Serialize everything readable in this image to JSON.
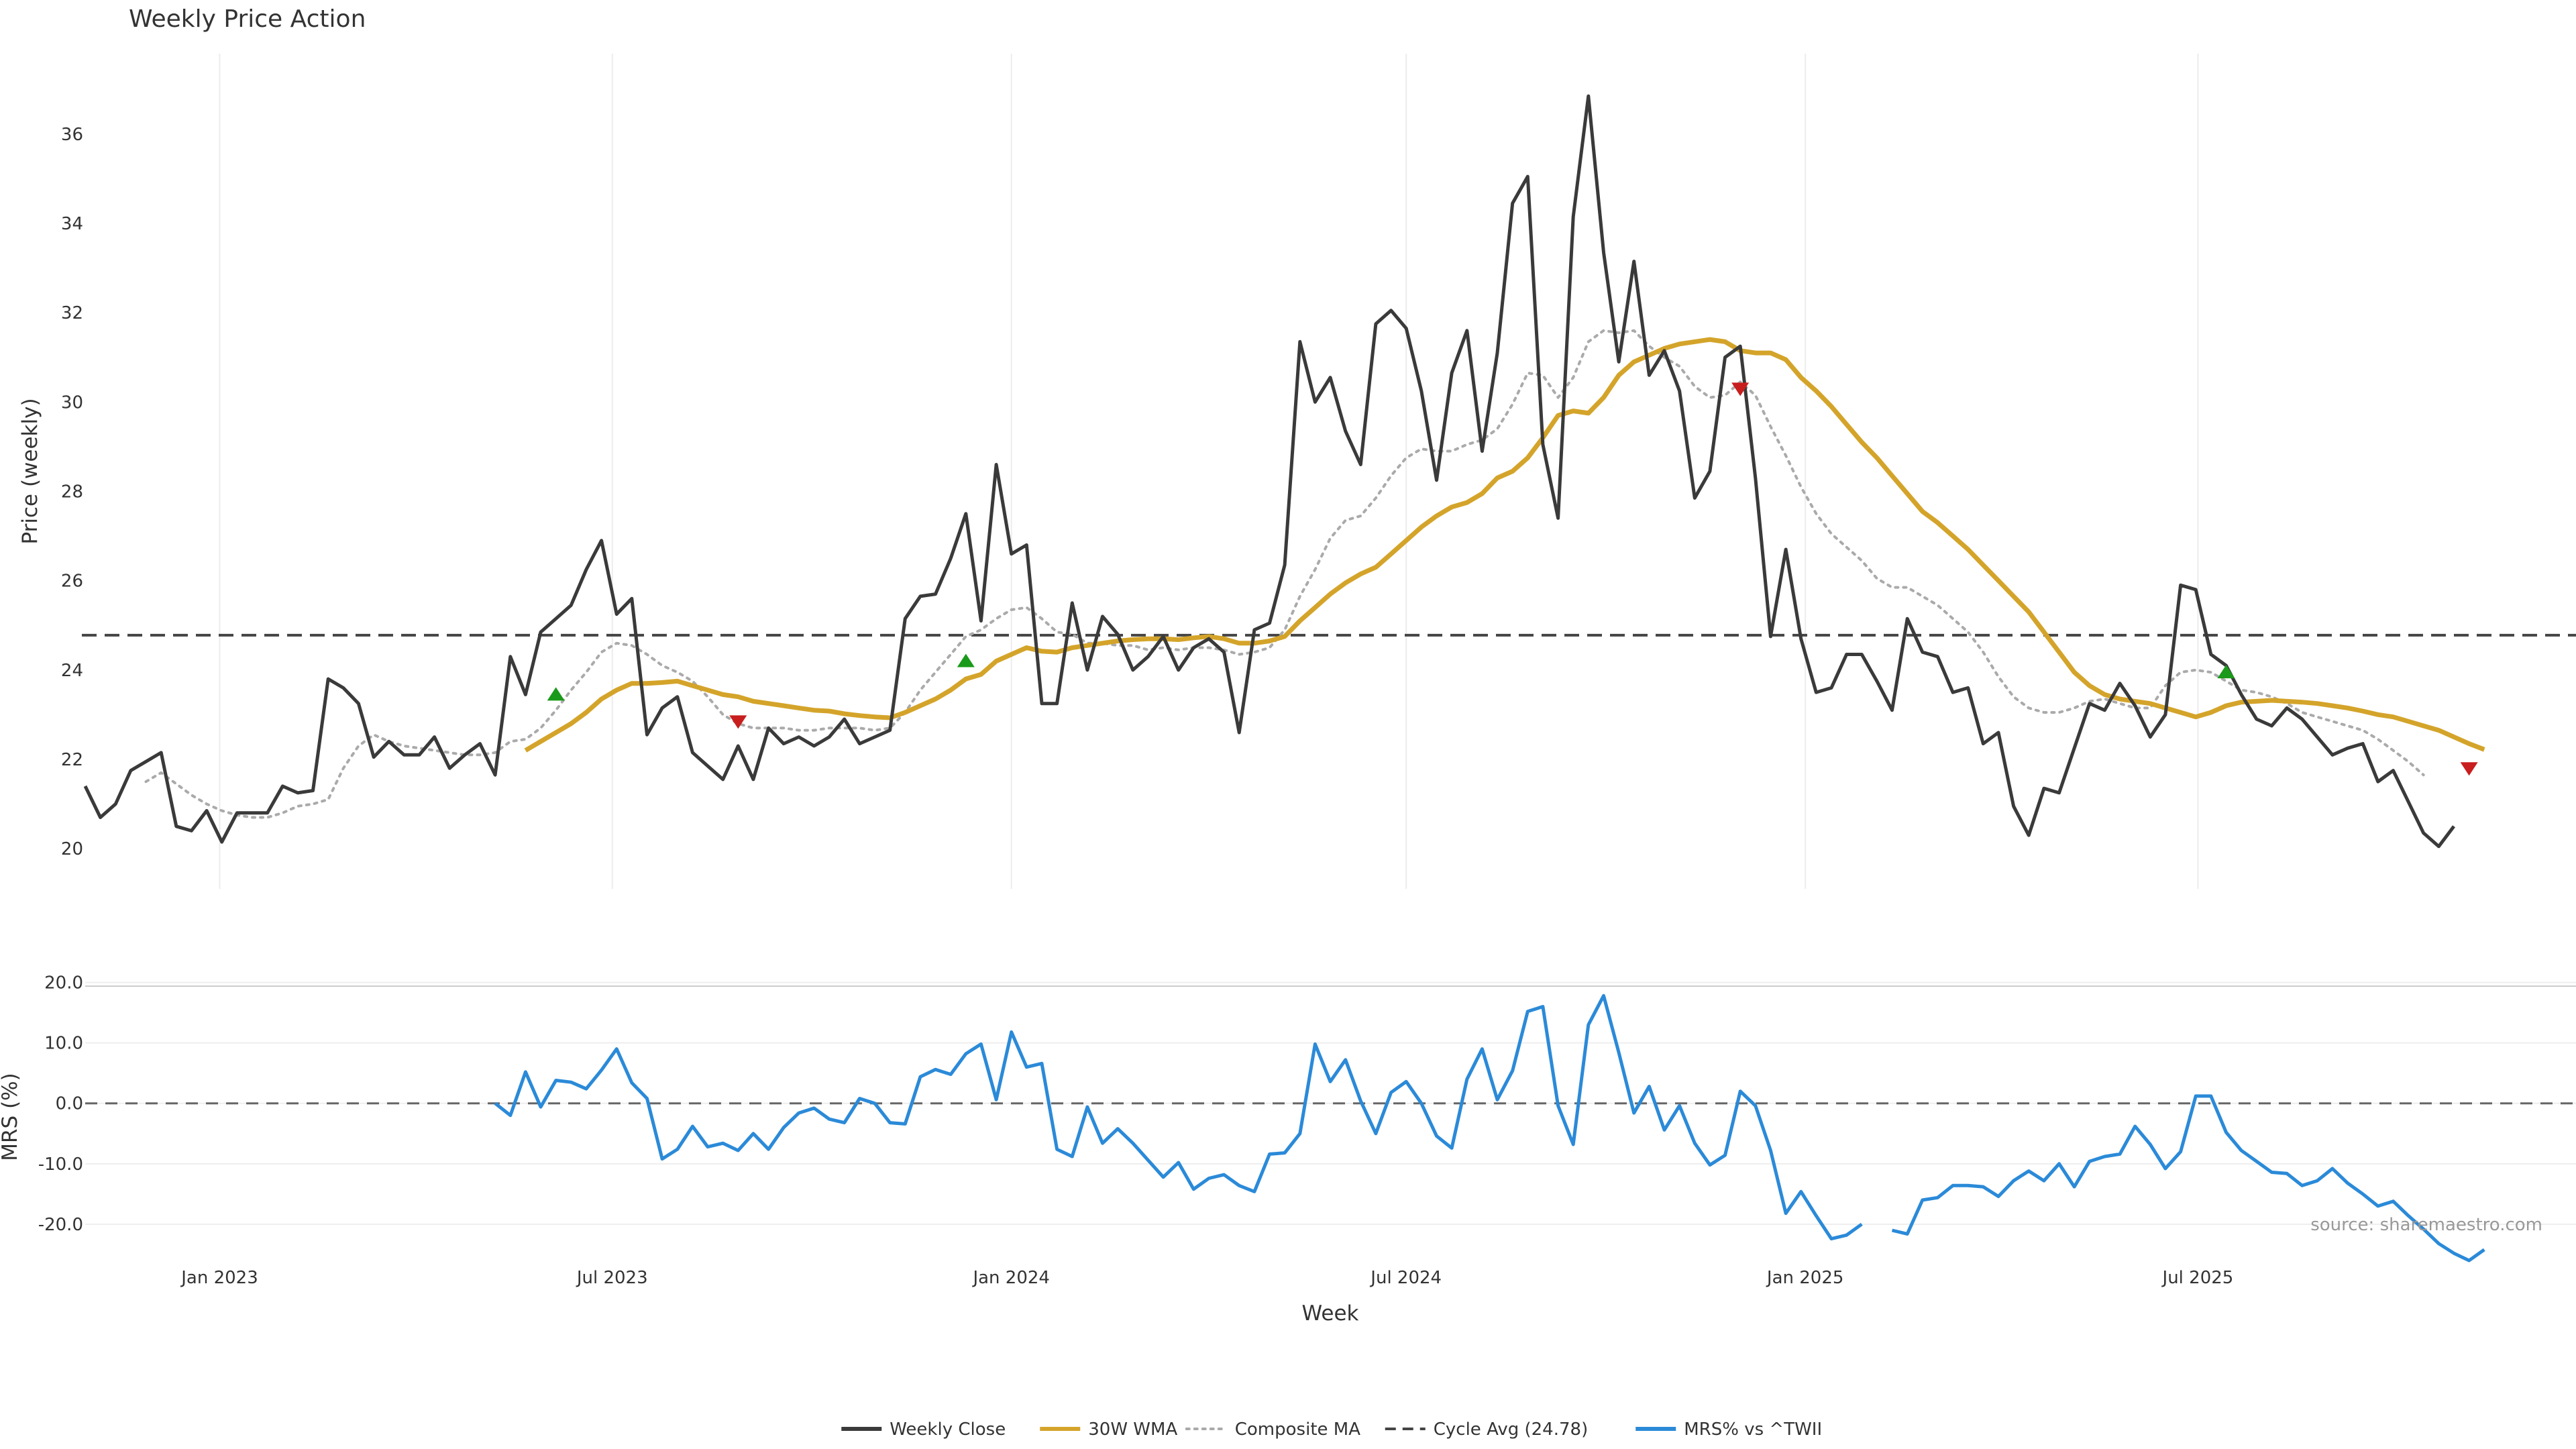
{
  "chart_data": {
    "type": "line",
    "title": "Weekly Price Action",
    "xlabel": "Week",
    "source": "source: sharemaestro.com",
    "x_start": "2022-10-31",
    "x_step_days": 7,
    "x_ticks": [
      {
        "date": "2023-01-01",
        "label": "Jan 2023"
      },
      {
        "date": "2023-07-01",
        "label": "Jul 2023"
      },
      {
        "date": "2024-01-01",
        "label": "Jan 2024"
      },
      {
        "date": "2024-07-01",
        "label": "Jul 2024"
      },
      {
        "date": "2025-01-01",
        "label": "Jan 2025"
      },
      {
        "date": "2025-07-01",
        "label": "Jul 2025"
      }
    ],
    "price_panel": {
      "ylabel": "Price (weekly)",
      "ylim": [
        19.1,
        37.8
      ],
      "yticks": [
        "20",
        "22",
        "24",
        "26",
        "28",
        "30",
        "32",
        "34",
        "36"
      ],
      "cycle_avg": 24.78
    },
    "mrs_panel": {
      "ylabel": "MRS (%)",
      "ylim": [
        -25,
        20.5
      ],
      "yticks": [
        "20.0",
        "10.0",
        "0.0",
        "-10.0",
        "-20.0"
      ],
      "zero_line": 0
    },
    "series": [
      {
        "name": "Weekly Close",
        "color": "#3a3a3a",
        "style": "solid",
        "values": [
          21.4,
          20.7,
          21.0,
          21.75,
          21.95,
          22.15,
          20.5,
          20.4,
          20.85,
          20.15,
          20.8,
          20.8,
          20.8,
          21.4,
          21.25,
          21.3,
          23.8,
          23.6,
          23.25,
          22.05,
          22.4,
          22.1,
          22.1,
          22.5,
          21.8,
          22.1,
          22.35,
          21.65,
          24.3,
          23.45,
          24.85,
          25.15,
          25.45,
          26.25,
          26.9,
          25.25,
          25.6,
          22.55,
          23.15,
          23.4,
          22.15,
          21.85,
          21.55,
          22.3,
          21.55,
          22.7,
          22.35,
          22.5,
          22.3,
          22.5,
          22.9,
          22.35,
          22.5,
          22.65,
          25.15,
          25.65,
          25.7,
          26.5,
          27.5,
          25.1,
          28.6,
          26.6,
          26.8,
          23.25,
          23.25,
          25.5,
          24.0,
          25.2,
          24.8,
          24.0,
          24.3,
          24.75,
          24.0,
          24.5,
          24.7,
          24.4,
          22.6,
          24.9,
          25.05,
          26.35,
          31.35,
          30.0,
          30.55,
          29.35,
          28.6,
          31.75,
          32.05,
          31.65,
          30.25,
          28.25,
          30.65,
          31.6,
          28.9,
          31.1,
          34.45,
          35.05,
          29.05,
          27.4,
          34.15,
          36.85,
          33.35,
          30.9,
          33.15,
          30.6,
          31.15,
          30.25,
          27.85,
          28.45,
          31.0,
          31.25,
          28.3,
          24.75,
          26.7,
          24.7,
          23.5,
          23.6,
          24.35,
          24.35,
          23.75,
          23.1,
          25.15,
          24.4,
          24.3,
          23.5,
          23.6,
          22.35,
          22.6,
          20.95,
          20.3,
          21.35,
          21.25,
          22.25,
          23.25,
          23.1,
          23.7,
          23.2,
          22.5,
          23.0,
          25.9,
          25.8,
          24.35,
          24.1,
          23.45,
          22.9,
          22.75,
          23.15,
          22.9,
          22.5,
          22.1,
          22.25,
          22.35,
          21.5,
          21.75,
          21.05,
          20.35,
          20.05,
          20.5
        ]
      },
      {
        "name": "30W WMA",
        "color": "#d4a42a",
        "style": "solid",
        "values": [
          null,
          null,
          null,
          null,
          null,
          null,
          null,
          null,
          null,
          null,
          null,
          null,
          null,
          null,
          null,
          null,
          null,
          null,
          null,
          null,
          null,
          null,
          null,
          null,
          null,
          null,
          null,
          null,
          null,
          22.2,
          22.4,
          22.6,
          22.8,
          23.05,
          23.35,
          23.55,
          23.7,
          23.7,
          23.72,
          23.75,
          23.65,
          23.55,
          23.45,
          23.4,
          23.3,
          23.25,
          23.2,
          23.15,
          23.1,
          23.08,
          23.02,
          22.98,
          22.95,
          22.93,
          23.05,
          23.2,
          23.35,
          23.55,
          23.8,
          23.9,
          24.2,
          24.35,
          24.5,
          24.42,
          24.4,
          24.5,
          24.55,
          24.6,
          24.65,
          24.68,
          24.7,
          24.7,
          24.68,
          24.72,
          24.75,
          24.7,
          24.6,
          24.6,
          24.65,
          24.75,
          25.1,
          25.4,
          25.7,
          25.95,
          26.15,
          26.3,
          26.6,
          26.9,
          27.2,
          27.45,
          27.65,
          27.75,
          27.95,
          28.3,
          28.45,
          28.75,
          29.2,
          29.7,
          29.8,
          29.75,
          30.1,
          30.6,
          30.9,
          31.05,
          31.2,
          31.3,
          31.35,
          31.4,
          31.35,
          31.15,
          31.1,
          31.1,
          30.95,
          30.55,
          30.25,
          29.9,
          29.5,
          29.1,
          28.75,
          28.35,
          27.95,
          27.55,
          27.3,
          27.0,
          26.7,
          26.35,
          26.0,
          25.65,
          25.3,
          24.85,
          24.4,
          23.95,
          23.65,
          23.45,
          23.35,
          23.3,
          23.25,
          23.15,
          23.05,
          22.95,
          23.05,
          23.2,
          23.28,
          23.3,
          23.32,
          23.3,
          23.28,
          23.25,
          23.2,
          23.15,
          23.08,
          23.0,
          22.95,
          22.85,
          22.75,
          22.65,
          22.5,
          22.35,
          22.22
        ]
      },
      {
        "name": "Composite MA",
        "color": "#aaaaaa",
        "style": "dotted",
        "values": [
          null,
          null,
          null,
          null,
          21.5,
          21.7,
          21.45,
          21.2,
          21.0,
          20.85,
          20.75,
          20.7,
          20.7,
          20.8,
          20.95,
          21.0,
          21.1,
          21.8,
          22.3,
          22.55,
          22.4,
          22.3,
          22.25,
          22.2,
          22.15,
          22.1,
          22.1,
          22.15,
          22.4,
          22.45,
          22.7,
          23.1,
          23.55,
          23.95,
          24.4,
          24.6,
          24.55,
          24.35,
          24.1,
          23.95,
          23.75,
          23.4,
          23.0,
          22.8,
          22.7,
          22.7,
          22.7,
          22.65,
          22.65,
          22.7,
          22.7,
          22.7,
          22.65,
          22.7,
          23.05,
          23.55,
          23.95,
          24.35,
          24.75,
          24.9,
          25.15,
          25.35,
          25.4,
          25.15,
          24.85,
          24.8,
          24.6,
          24.6,
          24.55,
          24.55,
          24.45,
          24.5,
          24.45,
          24.5,
          24.5,
          24.45,
          24.35,
          24.4,
          24.5,
          24.9,
          25.65,
          26.25,
          26.95,
          27.35,
          27.45,
          27.85,
          28.35,
          28.75,
          28.95,
          28.9,
          28.9,
          29.05,
          29.15,
          29.4,
          29.95,
          30.65,
          30.6,
          30.1,
          30.55,
          31.35,
          31.6,
          31.55,
          31.6,
          31.25,
          31.0,
          30.8,
          30.35,
          30.1,
          30.15,
          30.45,
          30.15,
          29.45,
          28.8,
          28.1,
          27.5,
          27.05,
          26.75,
          26.45,
          26.05,
          25.85,
          25.85,
          25.65,
          25.45,
          25.15,
          24.85,
          24.4,
          23.85,
          23.4,
          23.15,
          23.05,
          23.05,
          23.15,
          23.3,
          23.35,
          23.25,
          23.15,
          23.15,
          23.65,
          23.95,
          24.0,
          23.95,
          23.75,
          23.55,
          23.5,
          23.4,
          23.25,
          23.05,
          22.95,
          22.85,
          22.75,
          22.65,
          22.45,
          22.2,
          21.95,
          21.65
        ]
      },
      {
        "name": "Cycle Avg (24.78)",
        "color": "#444444",
        "style": "dashed"
      },
      {
        "name": "MRS% vs ^TWII",
        "color": "#2b8ad8",
        "style": "solid",
        "values": [
          null,
          null,
          null,
          null,
          null,
          null,
          null,
          null,
          null,
          null,
          null,
          null,
          null,
          null,
          null,
          null,
          null,
          null,
          null,
          null,
          null,
          null,
          null,
          null,
          null,
          null,
          null,
          0.0,
          -2.0,
          5.2,
          -0.6,
          3.8,
          3.5,
          2.4,
          5.5,
          9.0,
          3.4,
          0.8,
          -9.2,
          -7.6,
          -3.8,
          -7.2,
          -6.6,
          -7.8,
          -5.0,
          -7.6,
          -4.0,
          -1.6,
          -0.8,
          -2.6,
          -3.2,
          0.8,
          0.0,
          -3.2,
          -3.4,
          4.4,
          5.6,
          4.8,
          8.2,
          9.8,
          0.6,
          11.8,
          6.0,
          6.6,
          -7.6,
          -8.8,
          -0.6,
          -6.6,
          -4.2,
          -6.6,
          -9.4,
          -12.2,
          -9.8,
          -14.2,
          -12.4,
          -11.8,
          -13.6,
          -14.6,
          -8.4,
          -8.2,
          -5.0,
          9.8,
          3.6,
          7.2,
          0.4,
          -5.0,
          1.8,
          3.6,
          0.0,
          -5.4,
          -7.4,
          4.0,
          9.0,
          0.6,
          5.4,
          15.2,
          16.0,
          -0.4,
          -6.8,
          13.0,
          17.8,
          8.4,
          -1.6,
          2.8,
          -4.4,
          -0.4,
          -6.6,
          -10.2,
          -8.6,
          2.0,
          -0.4,
          -7.8,
          -18.2,
          -14.6,
          -18.6,
          -22.4,
          -21.8,
          -20.0,
          null,
          -21.0,
          -21.6,
          -16.0,
          -15.6,
          -13.6,
          -13.6,
          -13.8,
          -15.4,
          -12.8,
          -11.2,
          -12.8,
          -10.0,
          -13.8,
          -9.6,
          -8.8,
          -8.4,
          -3.8,
          -6.8,
          -10.8,
          -8.0,
          1.2,
          1.2,
          -4.8,
          -7.8,
          -9.6,
          -11.4,
          -11.6,
          -13.6,
          -12.8,
          -10.8,
          -13.2,
          -15.0,
          -17.0,
          -16.2,
          -18.6,
          -20.8,
          -23.2,
          -24.8,
          -26.0,
          -24.2
        ]
      }
    ],
    "signals": [
      {
        "type": "buy",
        "week": 31,
        "price": 23.45,
        "color": "#1a9a1a"
      },
      {
        "type": "sell",
        "week": 43,
        "price": 22.85,
        "color": "#c81e1e"
      },
      {
        "type": "buy",
        "week": 58,
        "price": 24.2,
        "color": "#1a9a1a"
      },
      {
        "type": "sell",
        "week": 109,
        "price": 30.3,
        "color": "#c81e1e"
      },
      {
        "type": "buy",
        "week": 141,
        "price": 23.95,
        "color": "#1a9a1a"
      },
      {
        "type": "sell",
        "week": 157,
        "price": 21.8,
        "color": "#c81e1e"
      }
    ],
    "legend_position": "bottom-center"
  }
}
